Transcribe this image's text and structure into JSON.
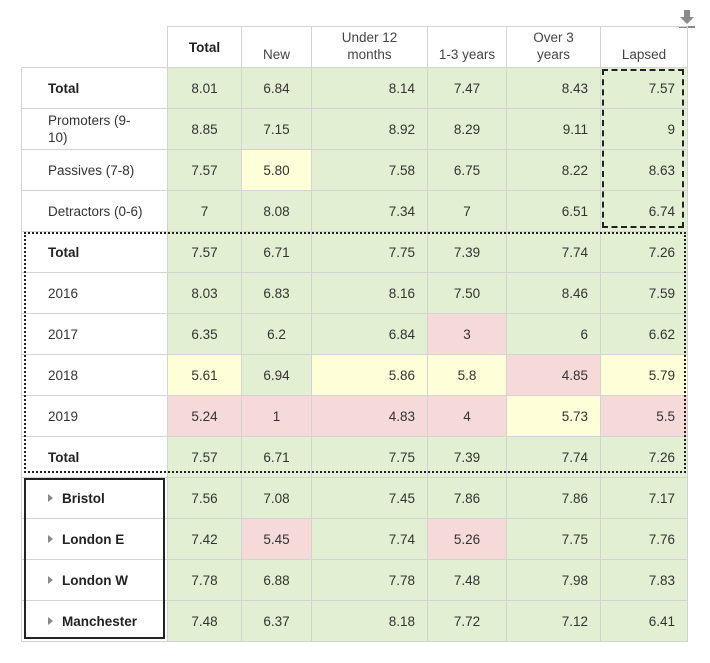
{
  "toolbar": {
    "download_icon": "download-icon"
  },
  "columns": [
    "Total",
    "New",
    "Under 12 months",
    "1-3 years",
    "Over 3 years",
    "Lapsed"
  ],
  "rows": [
    {
      "label": "Total",
      "bold": true,
      "cells": [
        {
          "v": "8.01",
          "c": "green"
        },
        {
          "v": "6.84",
          "c": "green"
        },
        {
          "v": "8.14",
          "c": "green"
        },
        {
          "v": "7.47",
          "c": "green"
        },
        {
          "v": "8.43",
          "c": "green"
        },
        {
          "v": "7.57",
          "c": "green"
        }
      ]
    },
    {
      "label": "Promoters (9-10)",
      "bold": false,
      "cells": [
        {
          "v": "8.85",
          "c": "green"
        },
        {
          "v": "7.15",
          "c": "green"
        },
        {
          "v": "8.92",
          "c": "green"
        },
        {
          "v": "8.29",
          "c": "green"
        },
        {
          "v": "9.11",
          "c": "green"
        },
        {
          "v": "9",
          "c": "green"
        }
      ]
    },
    {
      "label": "Passives (7-8)",
      "bold": false,
      "cells": [
        {
          "v": "7.57",
          "c": "green"
        },
        {
          "v": "5.80",
          "c": "yellow"
        },
        {
          "v": "7.58",
          "c": "green"
        },
        {
          "v": "6.75",
          "c": "green"
        },
        {
          "v": "8.22",
          "c": "green"
        },
        {
          "v": "8.63",
          "c": "green"
        }
      ]
    },
    {
      "label": "Detractors (0-6)",
      "bold": false,
      "cells": [
        {
          "v": "7",
          "c": "green"
        },
        {
          "v": "8.08",
          "c": "green"
        },
        {
          "v": "7.34",
          "c": "green"
        },
        {
          "v": "7",
          "c": "green"
        },
        {
          "v": "6.51",
          "c": "green"
        },
        {
          "v": "6.74",
          "c": "green"
        }
      ]
    },
    {
      "label": "Total",
      "bold": true,
      "cells": [
        {
          "v": "7.57",
          "c": "green"
        },
        {
          "v": "6.71",
          "c": "green"
        },
        {
          "v": "7.75",
          "c": "green"
        },
        {
          "v": "7.39",
          "c": "green"
        },
        {
          "v": "7.74",
          "c": "green"
        },
        {
          "v": "7.26",
          "c": "green"
        }
      ]
    },
    {
      "label": "2016",
      "bold": false,
      "cells": [
        {
          "v": "8.03",
          "c": "green"
        },
        {
          "v": "6.83",
          "c": "green"
        },
        {
          "v": "8.16",
          "c": "green"
        },
        {
          "v": "7.50",
          "c": "green"
        },
        {
          "v": "8.46",
          "c": "green"
        },
        {
          "v": "7.59",
          "c": "green"
        }
      ]
    },
    {
      "label": "2017",
      "bold": false,
      "cells": [
        {
          "v": "6.35",
          "c": "green"
        },
        {
          "v": "6.2",
          "c": "green"
        },
        {
          "v": "6.84",
          "c": "green"
        },
        {
          "v": "3",
          "c": "red"
        },
        {
          "v": "6",
          "c": "green"
        },
        {
          "v": "6.62",
          "c": "green"
        }
      ]
    },
    {
      "label": "2018",
      "bold": false,
      "cells": [
        {
          "v": "5.61",
          "c": "yellow"
        },
        {
          "v": "6.94",
          "c": "green"
        },
        {
          "v": "5.86",
          "c": "yellow"
        },
        {
          "v": "5.8",
          "c": "yellow"
        },
        {
          "v": "4.85",
          "c": "red"
        },
        {
          "v": "5.79",
          "c": "yellow"
        }
      ]
    },
    {
      "label": "2019",
      "bold": false,
      "cells": [
        {
          "v": "5.24",
          "c": "red"
        },
        {
          "v": "1",
          "c": "red"
        },
        {
          "v": "4.83",
          "c": "red"
        },
        {
          "v": "4",
          "c": "red"
        },
        {
          "v": "5.73",
          "c": "yellow"
        },
        {
          "v": "5.5",
          "c": "red"
        }
      ]
    },
    {
      "label": "Total",
      "bold": true,
      "cells": [
        {
          "v": "7.57",
          "c": "green"
        },
        {
          "v": "6.71",
          "c": "green"
        },
        {
          "v": "7.75",
          "c": "green"
        },
        {
          "v": "7.39",
          "c": "green"
        },
        {
          "v": "7.74",
          "c": "green"
        },
        {
          "v": "7.26",
          "c": "green"
        }
      ]
    },
    {
      "label": "Bristol",
      "group": true,
      "cells": [
        {
          "v": "7.56",
          "c": "green"
        },
        {
          "v": "7.08",
          "c": "green"
        },
        {
          "v": "7.45",
          "c": "green"
        },
        {
          "v": "7.86",
          "c": "green"
        },
        {
          "v": "7.86",
          "c": "green"
        },
        {
          "v": "7.17",
          "c": "green"
        }
      ]
    },
    {
      "label": "London E",
      "group": true,
      "cells": [
        {
          "v": "7.42",
          "c": "green"
        },
        {
          "v": "5.45",
          "c": "red"
        },
        {
          "v": "7.74",
          "c": "green"
        },
        {
          "v": "5.26",
          "c": "red"
        },
        {
          "v": "7.75",
          "c": "green"
        },
        {
          "v": "7.76",
          "c": "green"
        }
      ]
    },
    {
      "label": "London W",
      "group": true,
      "cells": [
        {
          "v": "7.78",
          "c": "green"
        },
        {
          "v": "6.88",
          "c": "green"
        },
        {
          "v": "7.78",
          "c": "green"
        },
        {
          "v": "7.48",
          "c": "green"
        },
        {
          "v": "7.98",
          "c": "green"
        },
        {
          "v": "7.83",
          "c": "green"
        }
      ]
    },
    {
      "label": "Manchester",
      "group": true,
      "cells": [
        {
          "v": "7.48",
          "c": "green"
        },
        {
          "v": "6.37",
          "c": "green"
        },
        {
          "v": "8.18",
          "c": "green"
        },
        {
          "v": "7.72",
          "c": "green"
        },
        {
          "v": "7.12",
          "c": "green"
        },
        {
          "v": "6.41",
          "c": "green"
        }
      ]
    }
  ]
}
